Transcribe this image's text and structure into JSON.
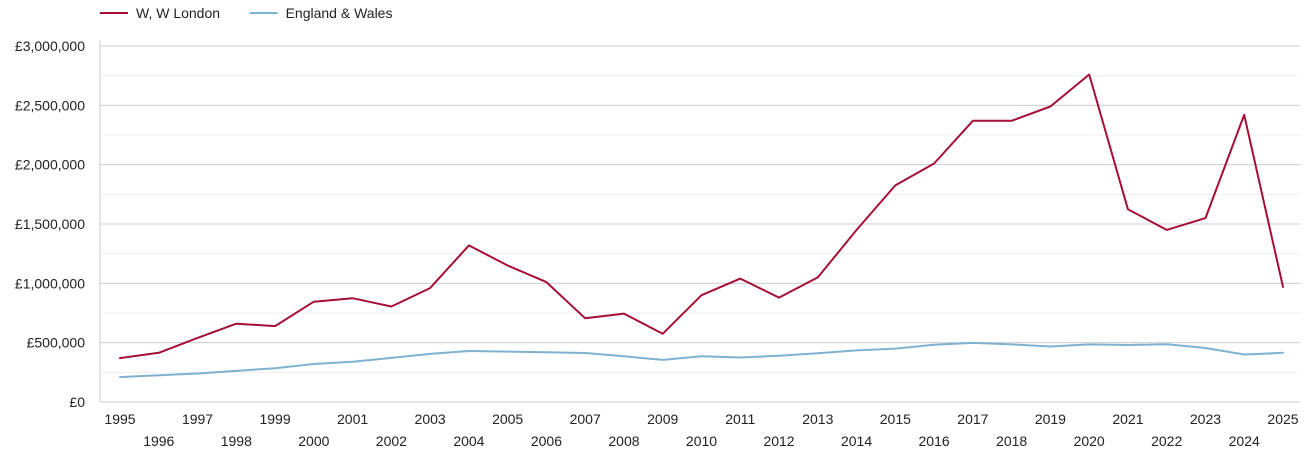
{
  "chart_data": {
    "type": "line",
    "title": "",
    "xlabel": "",
    "ylabel": "",
    "x": [
      1995,
      1996,
      1997,
      1998,
      1999,
      2000,
      2001,
      2002,
      2003,
      2004,
      2005,
      2006,
      2007,
      2008,
      2009,
      2010,
      2011,
      2012,
      2013,
      2014,
      2015,
      2016,
      2017,
      2018,
      2019,
      2020,
      2021,
      2022,
      2023,
      2024,
      2025
    ],
    "ylim": [
      0,
      3000000
    ],
    "y_ticks": [
      0,
      500000,
      1000000,
      1500000,
      2000000,
      2500000,
      3000000
    ],
    "y_tick_labels": [
      "£0",
      "£500,000",
      "£1,000,000",
      "£1,500,000",
      "£2,000,000",
      "£2,500,000",
      "£3,000,000"
    ],
    "grid": true,
    "legend_position": "top-left",
    "series": [
      {
        "name": "W, W London",
        "color": "#a50f37",
        "values": [
          370000,
          415000,
          540000,
          660000,
          640000,
          845000,
          875000,
          805000,
          960000,
          1320000,
          1150000,
          1010000,
          705000,
          745000,
          575000,
          900000,
          1040000,
          880000,
          1050000,
          1450000,
          1825000,
          2010000,
          2370000,
          2370000,
          2490000,
          2760000,
          1625000,
          1450000,
          1550000,
          2420000,
          970000
        ]
      },
      {
        "name": "England & Wales",
        "color": "#7fb1d0",
        "values": [
          210000,
          225000,
          240000,
          262000,
          285000,
          320000,
          340000,
          372000,
          405000,
          430000,
          425000,
          420000,
          413000,
          385000,
          355000,
          385000,
          375000,
          390000,
          410000,
          435000,
          450000,
          483000,
          498000,
          485000,
          468000,
          485000,
          480000,
          487000,
          455000,
          400000,
          415000
        ]
      }
    ]
  }
}
